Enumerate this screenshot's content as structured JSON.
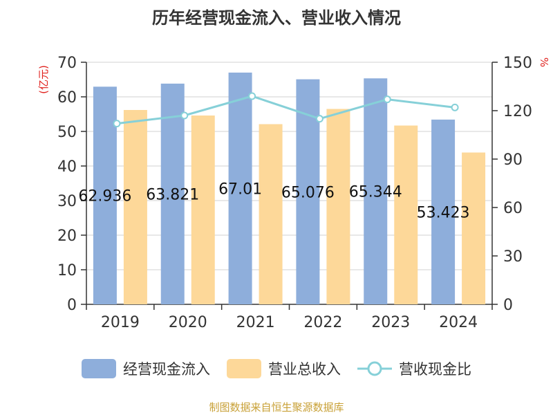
{
  "chart_data": {
    "type": "bar",
    "title": "历年经营现金流入、营业收入情况",
    "categories": [
      "2019",
      "2020",
      "2021",
      "2022",
      "2023",
      "2024"
    ],
    "y_left": {
      "label": "(亿元)",
      "min": 0,
      "max": 70,
      "ticks": [
        0,
        10,
        20,
        30,
        40,
        50,
        60,
        70
      ]
    },
    "y_right": {
      "label": "%",
      "min": 0,
      "max": 150,
      "ticks": [
        0,
        30,
        60,
        90,
        120,
        150
      ]
    },
    "grid": true,
    "legend_position": "bottom",
    "series": [
      {
        "name": "经营现金流入",
        "type": "bar",
        "axis": "left",
        "color": "#8eaedb",
        "values": [
          62.936,
          63.821,
          67.01,
          65.076,
          65.344,
          53.423
        ],
        "labels": [
          "62.936",
          "63.821",
          "67.01",
          "65.076",
          "65.344",
          "53.423"
        ]
      },
      {
        "name": "营业总收入",
        "type": "bar",
        "axis": "left",
        "color": "#fdd899",
        "values": [
          56.2,
          54.6,
          52.1,
          56.5,
          51.7,
          43.9
        ]
      },
      {
        "name": "营收现金比",
        "type": "line",
        "axis": "right",
        "color": "#86d0d8",
        "values": [
          112,
          117,
          129,
          115,
          127,
          122
        ]
      }
    ]
  },
  "footer": "制图数据来自恒生聚源数据库"
}
